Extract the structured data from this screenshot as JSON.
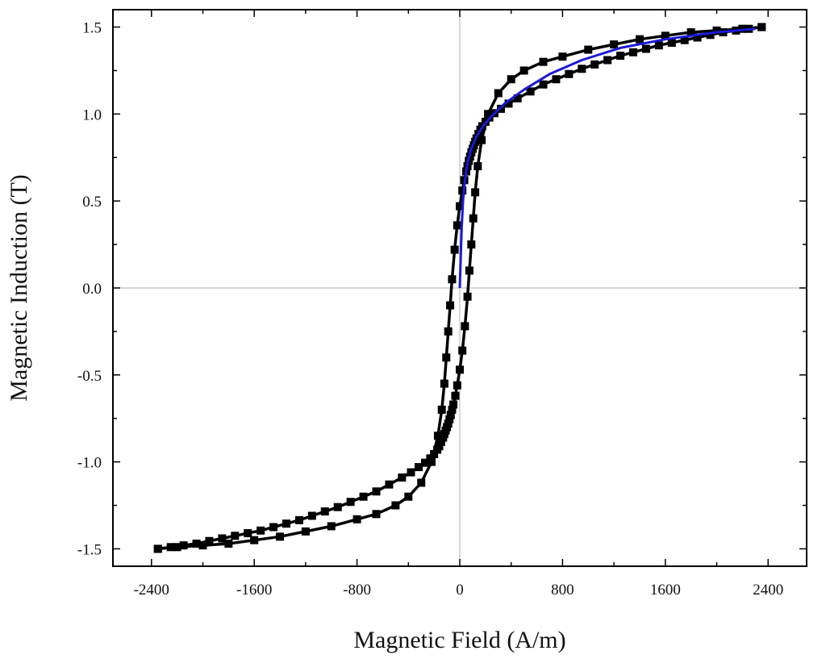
{
  "chart_data": {
    "type": "line",
    "xlabel": "Magnetic Field (A/m)",
    "ylabel": "Magnetic Induction (T)",
    "xlim": [
      -2700,
      2700
    ],
    "ylim": [
      -1.6,
      1.6
    ],
    "x_ticks": [
      -2400,
      -1600,
      -800,
      0,
      800,
      1600,
      2400
    ],
    "x_tick_labels": [
      "-2400",
      "-1600",
      "-800",
      "0",
      "800",
      "1600",
      "2400"
    ],
    "y_ticks": [
      -1.5,
      -1.0,
      -0.5,
      0.0,
      0.5,
      1.0,
      1.5
    ],
    "y_tick_labels": [
      "-1.5",
      "-1.0",
      "-0.5",
      "0.0",
      "0.5",
      "1.0",
      "1.5"
    ],
    "grid": false,
    "zero_lines": true,
    "series": [
      {
        "color": "#000000",
        "marker": "square",
        "x": [
          2350,
          2250,
          2150,
          2050,
          1950,
          1850,
          1750,
          1650,
          1550,
          1450,
          1350,
          1250,
          1150,
          1050,
          950,
          850,
          750,
          650,
          550,
          450,
          380,
          320,
          270,
          230,
          200,
          175,
          160,
          145,
          130,
          120,
          110,
          100,
          90,
          80,
          70,
          60,
          50,
          35,
          20,
          0,
          -20,
          -40,
          -60,
          -75,
          -90,
          -105,
          -120,
          -140,
          -170,
          -220,
          -300,
          -400,
          -500,
          -650,
          -800,
          -1000,
          -1200,
          -1400,
          -1600,
          -1800,
          -2000,
          -2200,
          -2350
        ],
        "y": [
          1.5,
          1.49,
          1.48,
          1.47,
          1.455,
          1.44,
          1.425,
          1.41,
          1.395,
          1.375,
          1.355,
          1.335,
          1.31,
          1.285,
          1.26,
          1.23,
          1.2,
          1.17,
          1.13,
          1.09,
          1.06,
          1.03,
          1.005,
          0.98,
          0.955,
          0.93,
          0.91,
          0.885,
          0.86,
          0.84,
          0.82,
          0.8,
          0.78,
          0.755,
          0.73,
          0.7,
          0.67,
          0.62,
          0.56,
          0.47,
          0.36,
          0.22,
          0.05,
          -0.1,
          -0.25,
          -0.4,
          -0.55,
          -0.7,
          -0.85,
          -1.0,
          -1.12,
          -1.2,
          -1.25,
          -1.3,
          -1.33,
          -1.37,
          -1.4,
          -1.43,
          -1.45,
          -1.47,
          -1.48,
          -1.49,
          -1.5
        ]
      },
      {
        "color": "#000000",
        "marker": "square",
        "x": [
          -2350,
          -2250,
          -2150,
          -2050,
          -1950,
          -1850,
          -1750,
          -1650,
          -1550,
          -1450,
          -1350,
          -1250,
          -1150,
          -1050,
          -950,
          -850,
          -750,
          -650,
          -550,
          -450,
          -380,
          -320,
          -270,
          -230,
          -200,
          -175,
          -160,
          -145,
          -130,
          -120,
          -110,
          -100,
          -90,
          -80,
          -70,
          -60,
          -50,
          -35,
          -20,
          0,
          20,
          40,
          60,
          75,
          90,
          105,
          120,
          140,
          170,
          220,
          300,
          400,
          500,
          650,
          800,
          1000,
          1200,
          1400,
          1600,
          1800,
          2000,
          2200,
          2350
        ],
        "y": [
          -1.5,
          -1.49,
          -1.48,
          -1.47,
          -1.455,
          -1.44,
          -1.425,
          -1.41,
          -1.395,
          -1.375,
          -1.355,
          -1.335,
          -1.31,
          -1.285,
          -1.26,
          -1.23,
          -1.2,
          -1.17,
          -1.13,
          -1.09,
          -1.06,
          -1.03,
          -1.005,
          -0.98,
          -0.955,
          -0.93,
          -0.91,
          -0.885,
          -0.86,
          -0.84,
          -0.82,
          -0.8,
          -0.78,
          -0.755,
          -0.73,
          -0.7,
          -0.67,
          -0.62,
          -0.56,
          -0.47,
          -0.36,
          -0.22,
          -0.05,
          0.1,
          0.25,
          0.4,
          0.55,
          0.7,
          0.85,
          1.0,
          1.12,
          1.2,
          1.25,
          1.3,
          1.33,
          1.37,
          1.4,
          1.43,
          1.45,
          1.47,
          1.48,
          1.49,
          1.5
        ]
      },
      {
        "color": "#1a1ad6",
        "marker": "none",
        "x": [
          0,
          8,
          15,
          25,
          40,
          60,
          90,
          130,
          180,
          250,
          350,
          500,
          700,
          950,
          1250,
          1600,
          2000,
          2300
        ],
        "y": [
          0.0,
          0.2,
          0.35,
          0.5,
          0.62,
          0.72,
          0.8,
          0.87,
          0.93,
          0.99,
          1.06,
          1.14,
          1.23,
          1.31,
          1.38,
          1.43,
          1.47,
          1.49
        ]
      }
    ]
  }
}
